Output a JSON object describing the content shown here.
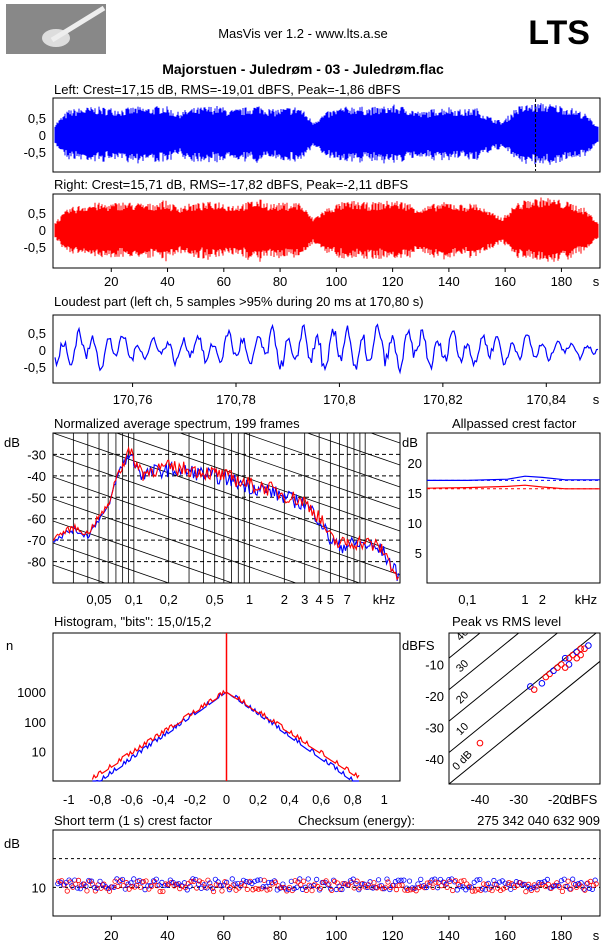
{
  "header": {
    "app_title": "MasVis ver 1.2 - www.lts.a.se",
    "brand": "LTS",
    "file_title": "Majorstuen - Juledrøm - 03 - Juledrøm.flac"
  },
  "colors": {
    "left": "#0000ff",
    "right": "#ff0000",
    "axis": "#000000",
    "grid": "#000000"
  },
  "chart_data": [
    {
      "id": "left_waveform",
      "type": "area",
      "title": "Left: Crest=17,15 dB, RMS=-19,01 dBFS, Peak=-1,86 dBFS",
      "y_ticks": [
        "0,5",
        "0",
        "-0,5"
      ],
      "ylim": [
        -1,
        1
      ],
      "xlim": [
        0,
        193
      ],
      "envelope": [
        0.25,
        0.55,
        0.6,
        0.62,
        0.6,
        0.58,
        0.62,
        0.6,
        0.66,
        0.5,
        0.58,
        0.62,
        0.64,
        0.55,
        0.6,
        0.66,
        0.56,
        0.6,
        0.63,
        0.3,
        0.5,
        0.6,
        0.64,
        0.6,
        0.62,
        0.66,
        0.6,
        0.5,
        0.58,
        0.62,
        0.55,
        0.6,
        0.4,
        0.3,
        0.62,
        0.68,
        0.7,
        0.66,
        0.6,
        0.48,
        0.2
      ],
      "marker_x": 170.8
    },
    {
      "id": "right_waveform",
      "type": "area",
      "title": "Right: Crest=15,71 dB, RMS=-17,82 dBFS, Peak=-2,11 dBFS",
      "y_ticks": [
        "0,5",
        "0",
        "-0,5"
      ],
      "ylim": [
        -1,
        1
      ],
      "xlim": [
        0,
        193
      ],
      "x_ticks": [
        "20",
        "40",
        "60",
        "80",
        "100",
        "120",
        "140",
        "160",
        "180"
      ],
      "x_unit": "s",
      "envelope": [
        0.2,
        0.5,
        0.58,
        0.62,
        0.6,
        0.64,
        0.62,
        0.6,
        0.68,
        0.55,
        0.6,
        0.62,
        0.66,
        0.58,
        0.62,
        0.7,
        0.6,
        0.62,
        0.64,
        0.28,
        0.5,
        0.62,
        0.66,
        0.62,
        0.64,
        0.68,
        0.62,
        0.5,
        0.6,
        0.64,
        0.58,
        0.62,
        0.42,
        0.3,
        0.62,
        0.7,
        0.74,
        0.7,
        0.62,
        0.5,
        0.2
      ]
    },
    {
      "id": "loudest_part",
      "type": "line",
      "title": "Loudest part (left  ch, 5 samples >95% during 20 ms at 170,80 s)",
      "y_ticks": [
        "0,5",
        "0",
        "-0,5"
      ],
      "ylim": [
        -1,
        1
      ],
      "x_ticks": [
        "170,76",
        "170,78",
        "170,8",
        "170,82",
        "170,84"
      ],
      "x_unit": "s",
      "xlim": [
        170.745,
        170.85
      ],
      "amplitude_envelope": [
        0.45,
        0.4,
        0.3,
        0.25,
        0.3,
        0.35,
        0.4,
        0.45,
        0.5,
        0.55,
        0.55,
        0.5,
        0.45,
        0.42,
        0.4,
        0.35,
        0.3,
        0.25,
        0.2,
        0.15
      ]
    },
    {
      "id": "spectrum",
      "type": "line",
      "title": "Normalized average spectrum, 199 frames",
      "ylabel": "dB",
      "y_ticks": [
        "-30",
        "-40",
        "-50",
        "-60",
        "-70",
        "-80"
      ],
      "ylim": [
        -90,
        -20
      ],
      "x_ticks": [
        "0,05",
        "0,1",
        "0,2",
        "0,5",
        "1",
        "2",
        "3",
        "4",
        "5",
        "7"
      ],
      "x_unit": "kHz",
      "xlim": [
        0.02,
        20
      ],
      "series": [
        {
          "color": "blue",
          "x": [
            0.02,
            0.03,
            0.04,
            0.05,
            0.06,
            0.07,
            0.08,
            0.09,
            0.1,
            0.12,
            0.15,
            0.2,
            0.3,
            0.5,
            0.7,
            1,
            1.5,
            2,
            3,
            4,
            5,
            6,
            7,
            10,
            14,
            20
          ],
          "values": [
            -70,
            -65,
            -68,
            -60,
            -55,
            -42,
            -35,
            -30,
            -33,
            -40,
            -38,
            -37,
            -38,
            -40,
            -42,
            -45,
            -47,
            -50,
            -53,
            -60,
            -70,
            -73,
            -72,
            -72,
            -75,
            -88
          ]
        },
        {
          "color": "red",
          "x": [
            0.02,
            0.03,
            0.04,
            0.05,
            0.06,
            0.07,
            0.08,
            0.09,
            0.1,
            0.12,
            0.15,
            0.2,
            0.3,
            0.5,
            0.7,
            1,
            1.5,
            2,
            3,
            4,
            5,
            6,
            7,
            10,
            14,
            20
          ],
          "values": [
            -69,
            -64,
            -67,
            -59,
            -54,
            -41,
            -34,
            -29,
            -32,
            -39,
            -37,
            -36,
            -37,
            -39,
            -41,
            -44,
            -46,
            -49,
            -52,
            -59,
            -69,
            -72,
            -71,
            -71,
            -74,
            -89
          ]
        }
      ]
    },
    {
      "id": "allpassed_crest",
      "type": "line",
      "title": "Allpassed crest factor",
      "ylabel": "dB",
      "y_ticks": [
        "20",
        "15",
        "10",
        "5"
      ],
      "ylim": [
        0,
        25
      ],
      "x_ticks": [
        "0,1",
        "1",
        "2"
      ],
      "x_unit": "kHz",
      "xlim": [
        0.02,
        20
      ],
      "series": [
        {
          "color": "blue",
          "x": [
            0.02,
            0.1,
            0.5,
            1,
            2,
            5,
            20
          ],
          "values": [
            17.1,
            17.1,
            17.3,
            17.8,
            17.6,
            17.2,
            17.2
          ]
        },
        {
          "color": "red",
          "x": [
            0.02,
            0.1,
            0.5,
            1,
            2,
            5,
            20
          ],
          "values": [
            15.8,
            15.9,
            16.1,
            16.3,
            16.0,
            15.7,
            15.7
          ]
        }
      ],
      "dashed": [
        17.1,
        15.7
      ]
    },
    {
      "id": "histogram",
      "type": "line",
      "title": "Histogram, \"bits\": 15,0/15,2",
      "ylabel": "n",
      "y_ticks": [
        "1000",
        "100",
        "10"
      ],
      "yscale": "log",
      "x_ticks": [
        "-1",
        "-0,8",
        "-0,6",
        "-0,4",
        "-0,2",
        "0",
        "0,2",
        "0,4",
        "0,6",
        "0,8",
        "1"
      ],
      "xlim": [
        -1.1,
        1.1
      ],
      "peak_count": 1000
    },
    {
      "id": "peak_vs_rms",
      "type": "scatter",
      "title": "Peak vs RMS level",
      "ylabel": "dBFS",
      "y_ticks": [
        "-10",
        "-20",
        "-30",
        "-40"
      ],
      "ylim": [
        -48,
        0
      ],
      "x_ticks": [
        "-40",
        "-30",
        "-20"
      ],
      "x_unit": "dBFS",
      "xlim": [
        -48,
        -9
      ],
      "diagonal_labels": [
        "40",
        "30",
        "20",
        "10",
        "0 dB"
      ],
      "points": [
        [
          -24,
          -16
        ],
        [
          -23,
          -14
        ],
        [
          -22,
          -13
        ],
        [
          -21,
          -12
        ],
        [
          -20,
          -11
        ],
        [
          -19,
          -10
        ],
        [
          -18,
          -8
        ],
        [
          -17,
          -8
        ],
        [
          -16,
          -7
        ],
        [
          -15,
          -6
        ],
        [
          -14,
          -5
        ],
        [
          -13,
          -5
        ],
        [
          -17,
          -10
        ],
        [
          -18,
          -11
        ],
        [
          -15,
          -8
        ],
        [
          -27,
          -17
        ],
        [
          -26,
          -18
        ],
        [
          -40,
          -35
        ],
        [
          -12,
          -4
        ],
        [
          -14,
          -7
        ]
      ]
    },
    {
      "id": "short_term_crest",
      "type": "scatter",
      "title": "Short term (1 s) crest factor",
      "ylabel": "dB",
      "y_ticks": [
        "10"
      ],
      "ylim": [
        0,
        30
      ],
      "x_ticks": [
        "20",
        "40",
        "60",
        "80",
        "100",
        "120",
        "140",
        "160",
        "180"
      ],
      "x_unit": "s",
      "xlim": [
        0,
        193
      ],
      "dashed": [
        20,
        10
      ],
      "checksum_label": "Checksum (energy):",
      "checksum_value": "275 342 040 632 909"
    }
  ]
}
